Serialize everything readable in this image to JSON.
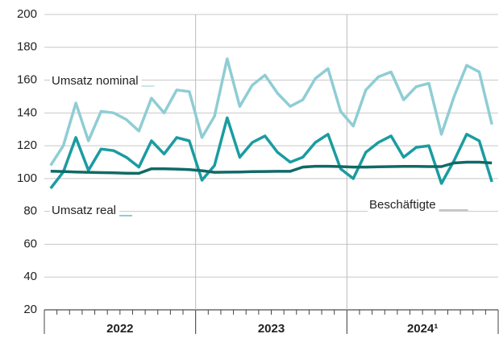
{
  "chart_data": {
    "type": "line",
    "categories": [
      null,
      null,
      null,
      null,
      null,
      null,
      null,
      null,
      null,
      null,
      null,
      null,
      null,
      null,
      null,
      null,
      null,
      null,
      null,
      null,
      null,
      null,
      null,
      null,
      null,
      null,
      null,
      null,
      null,
      null,
      null,
      null,
      null,
      null,
      null,
      null
    ],
    "year_labels": [
      "2022",
      "2023",
      "2024¹"
    ],
    "ylim": [
      20,
      200
    ],
    "yticks": [
      20,
      40,
      60,
      80,
      100,
      120,
      140,
      160,
      180,
      200
    ],
    "grid": true,
    "series": [
      {
        "name": "Umsatz nominal",
        "color": "#8fcdd4",
        "values": [
          108,
          120,
          146,
          123,
          141,
          140,
          136,
          129,
          149,
          140,
          154,
          153,
          125,
          138,
          173,
          144,
          157,
          163,
          152,
          144,
          148,
          161,
          167,
          141,
          132,
          154,
          162,
          165,
          148,
          156,
          158,
          127,
          150,
          169,
          165,
          133
        ]
      },
      {
        "name": "Umsatz real",
        "color": "#1a9ca0",
        "values": [
          94,
          104,
          125,
          105,
          118,
          117,
          113,
          107,
          123,
          115,
          125,
          123,
          99,
          108,
          137,
          113,
          122,
          126,
          116,
          110,
          113,
          122,
          127,
          106,
          100,
          116,
          122,
          126,
          113,
          119,
          120,
          97,
          111,
          127,
          123,
          98
        ]
      },
      {
        "name": "Beschäftigte",
        "color": "#0f6a66",
        "values": [
          104.5,
          104.3,
          104,
          103.8,
          103.6,
          103.5,
          103.3,
          103.2,
          106,
          106,
          105.8,
          105.5,
          104.8,
          103.8,
          103.9,
          104,
          104.2,
          104.3,
          104.4,
          104.4,
          107,
          107.5,
          107.5,
          107.3,
          107,
          107,
          107.2,
          107.3,
          107.4,
          107.4,
          107.3,
          107.3,
          109.5,
          110,
          110,
          109.5
        ]
      }
    ]
  }
}
